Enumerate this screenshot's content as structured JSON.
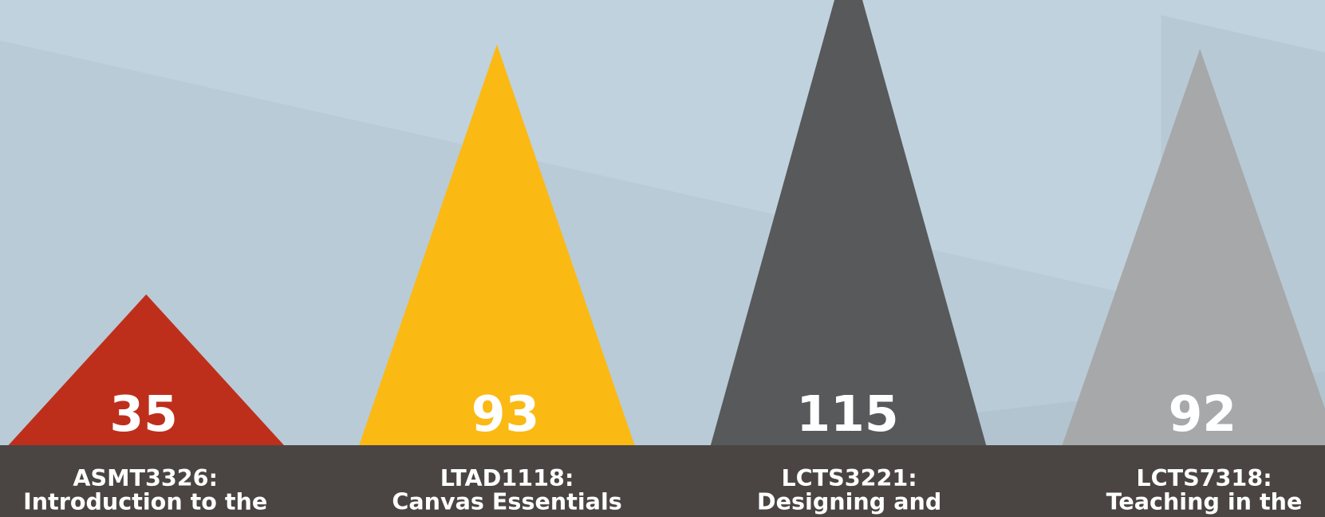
{
  "chart_data": {
    "type": "triangle",
    "categories": [
      [
        "ASMT3326:",
        "Introduction to the"
      ],
      [
        "LTAD1118:",
        "Canvas Essentials"
      ],
      [
        "LCTS3221:",
        "Designing and"
      ],
      [
        "LCTS7318:",
        "Teaching in the"
      ]
    ],
    "values": [
      35,
      93,
      115,
      92
    ],
    "colors": [
      "#be2f1b",
      "#fbb914",
      "#58595b",
      "#a7a8aa"
    ]
  }
}
